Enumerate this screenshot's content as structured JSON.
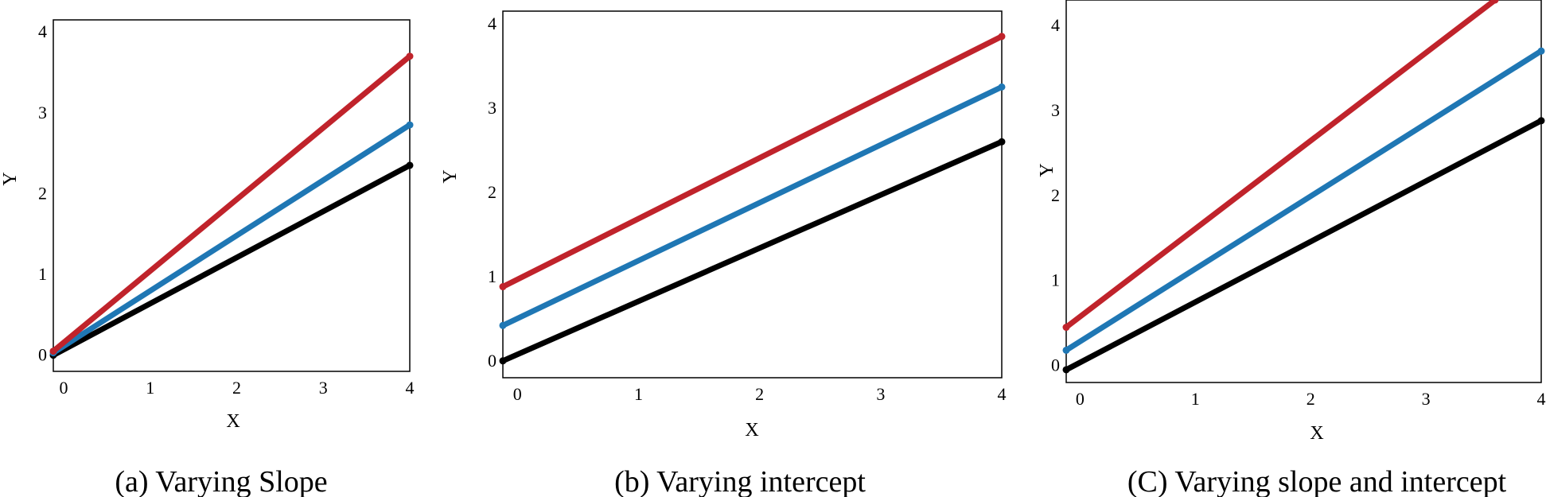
{
  "colors": {
    "red": "#c0232b",
    "blue": "#1f77b4",
    "black": "#000000"
  },
  "chart_data": [
    {
      "type": "line",
      "caption": "(a) Varying Slope",
      "xlabel": "X",
      "ylabel": "Y",
      "xlim": [
        -0.12,
        4
      ],
      "ylim": [
        -0.2,
        4.15
      ],
      "xticks": [
        0,
        1,
        2,
        3,
        4
      ],
      "yticks": [
        0,
        1,
        2,
        3,
        4
      ],
      "grid": false,
      "series": [
        {
          "color": "#c0232b",
          "x": [
            -0.12,
            4
          ],
          "y": [
            0.05,
            3.7
          ]
        },
        {
          "color": "#1f77b4",
          "x": [
            -0.12,
            4
          ],
          "y": [
            0.03,
            2.85
          ]
        },
        {
          "color": "#000000",
          "x": [
            -0.12,
            4
          ],
          "y": [
            0.0,
            2.35
          ]
        }
      ]
    },
    {
      "type": "line",
      "caption": "(b) Varying intercept",
      "xlabel": "X",
      "ylabel": "Y",
      "xlim": [
        -0.12,
        4
      ],
      "ylim": [
        -0.2,
        4.15
      ],
      "xticks": [
        0,
        1,
        2,
        3,
        4
      ],
      "yticks": [
        0,
        1,
        2,
        3,
        4
      ],
      "grid": false,
      "series": [
        {
          "color": "#c0232b",
          "x": [
            -0.12,
            4
          ],
          "y": [
            0.88,
            3.85
          ]
        },
        {
          "color": "#1f77b4",
          "x": [
            -0.12,
            4
          ],
          "y": [
            0.42,
            3.25
          ]
        },
        {
          "color": "#000000",
          "x": [
            -0.12,
            4
          ],
          "y": [
            0.0,
            2.6
          ]
        }
      ]
    },
    {
      "type": "line",
      "caption": "(C) Varying slope and intercept",
      "xlabel": "X",
      "ylabel": "Y",
      "xlim": [
        -0.12,
        4
      ],
      "ylim": [
        -0.2,
        4.3
      ],
      "xticks": [
        0,
        1,
        2,
        3,
        4
      ],
      "yticks": [
        0,
        1,
        2,
        3,
        4
      ],
      "grid": false,
      "series": [
        {
          "color": "#c0232b",
          "x": [
            -0.12,
            3.6
          ],
          "y": [
            0.45,
            4.3
          ]
        },
        {
          "color": "#1f77b4",
          "x": [
            -0.12,
            4
          ],
          "y": [
            0.18,
            3.7
          ]
        },
        {
          "color": "#000000",
          "x": [
            -0.12,
            4
          ],
          "y": [
            -0.05,
            2.88
          ]
        }
      ]
    }
  ]
}
